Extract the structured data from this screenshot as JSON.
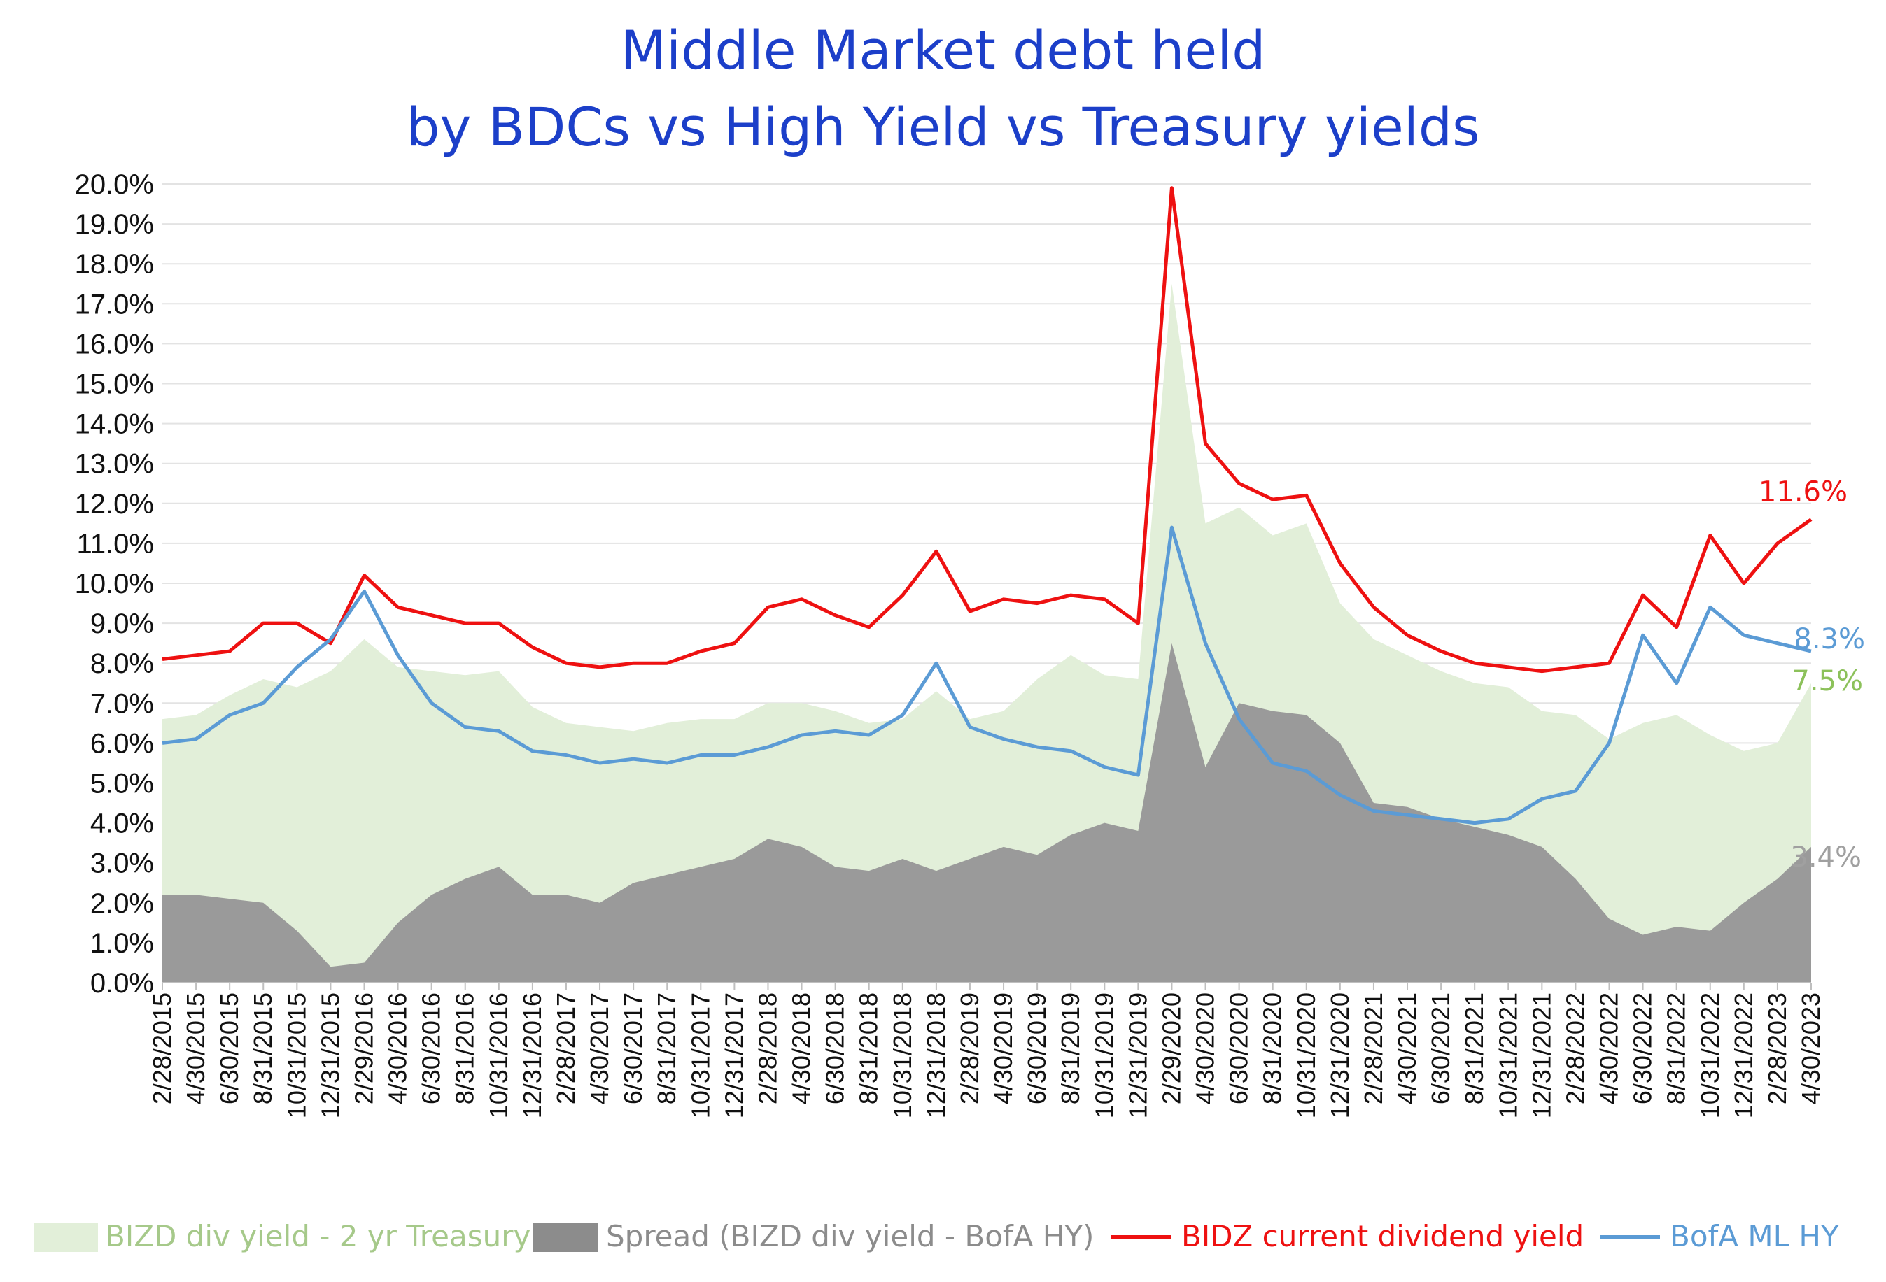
{
  "chart_data": {
    "type": "area",
    "title": [
      "Middle Market debt held",
      "by BDCs vs High Yield vs Treasury yields"
    ],
    "y_tick_labels": [
      "0.0%",
      "1.0%",
      "2.0%",
      "3.0%",
      "4.0%",
      "5.0%",
      "6.0%",
      "7.0%",
      "8.0%",
      "9.0%",
      "10.0%",
      "11.0%",
      "12.0%",
      "13.0%",
      "14.0%",
      "15.0%",
      "16.0%",
      "17.0%",
      "18.0%",
      "19.0%",
      "20.0%"
    ],
    "ylim": [
      0,
      20
    ],
    "x_tick_labels": [
      "2/28/2015",
      "4/30/2015",
      "6/30/2015",
      "8/31/2015",
      "10/31/2015",
      "12/31/2015",
      "2/29/2016",
      "4/30/2016",
      "6/30/2016",
      "8/31/2016",
      "10/31/2016",
      "12/31/2016",
      "2/28/2017",
      "4/30/2017",
      "6/30/2017",
      "8/31/2017",
      "10/31/2017",
      "12/31/2017",
      "2/28/2018",
      "4/30/2018",
      "6/30/2018",
      "8/31/2018",
      "10/31/2018",
      "12/31/2018",
      "2/28/2019",
      "4/30/2019",
      "6/30/2019",
      "8/31/2019",
      "10/31/2019",
      "12/31/2019",
      "2/29/2020",
      "4/30/2020",
      "6/30/2020",
      "8/31/2020",
      "10/31/2020",
      "12/31/2020",
      "2/28/2021",
      "4/30/2021",
      "6/30/2021",
      "8/31/2021",
      "10/31/2021",
      "12/31/2021",
      "2/28/2022",
      "4/30/2022",
      "6/30/2022",
      "8/31/2022",
      "10/31/2022",
      "12/31/2022",
      "2/28/2023",
      "4/30/2023"
    ],
    "x": [
      "2/28/2015",
      "4/30/2015",
      "6/30/2015",
      "8/31/2015",
      "10/31/2015",
      "12/31/2015",
      "2/29/2016",
      "4/30/2016",
      "6/30/2016",
      "8/31/2016",
      "10/31/2016",
      "12/31/2016",
      "2/28/2017",
      "4/30/2017",
      "6/30/2017",
      "8/31/2017",
      "10/31/2017",
      "12/31/2017",
      "2/28/2018",
      "4/30/2018",
      "6/30/2018",
      "8/31/2018",
      "10/31/2018",
      "12/31/2018",
      "2/28/2019",
      "4/30/2019",
      "6/30/2019",
      "8/31/2019",
      "10/31/2019",
      "12/31/2019",
      "2/29/2020",
      "4/30/2020",
      "6/30/2020",
      "8/31/2020",
      "10/31/2020",
      "12/31/2020",
      "2/28/2021",
      "4/30/2021",
      "6/30/2021",
      "8/31/2021",
      "10/31/2021",
      "12/31/2021",
      "2/28/2022",
      "4/30/2022",
      "6/30/2022",
      "8/31/2022",
      "10/31/2022",
      "12/31/2022",
      "2/28/2023",
      "4/30/2023"
    ],
    "series": [
      {
        "name": "BIZD div yield - 2 yr Treasury",
        "kind": "area",
        "color": "#e2efd9",
        "values": [
          6.6,
          6.7,
          7.2,
          7.6,
          7.4,
          7.8,
          8.6,
          7.9,
          7.8,
          7.7,
          7.8,
          6.9,
          6.5,
          6.4,
          6.3,
          6.5,
          6.6,
          6.6,
          7.0,
          7.0,
          6.8,
          6.5,
          6.6,
          7.3,
          6.6,
          6.8,
          7.6,
          8.2,
          7.7,
          7.6,
          17.5,
          11.5,
          11.9,
          11.2,
          11.5,
          9.5,
          8.6,
          8.2,
          7.8,
          7.5,
          7.4,
          6.8,
          6.7,
          6.1,
          6.5,
          6.7,
          6.2,
          5.8,
          6.0,
          7.5
        ]
      },
      {
        "name": "Spread (BIZD div yield - BofA HY)",
        "kind": "area",
        "color": "#9a9a9a",
        "values": [
          2.2,
          2.2,
          2.1,
          2.0,
          1.3,
          0.4,
          0.5,
          1.5,
          2.2,
          2.6,
          2.9,
          2.2,
          2.2,
          2.0,
          2.5,
          2.7,
          2.9,
          3.1,
          3.6,
          3.4,
          2.9,
          2.8,
          3.1,
          2.8,
          3.1,
          3.4,
          3.2,
          3.7,
          4.0,
          3.8,
          8.5,
          5.4,
          7.0,
          6.8,
          6.7,
          6.0,
          4.5,
          4.4,
          4.1,
          3.9,
          3.7,
          3.4,
          2.6,
          1.6,
          1.2,
          1.4,
          1.3,
          2.0,
          2.6,
          3.4
        ]
      },
      {
        "name": "BIDZ current dividend yield",
        "kind": "line",
        "color": "#ee1111",
        "values": [
          8.1,
          8.2,
          8.3,
          9.0,
          9.0,
          8.5,
          10.2,
          9.4,
          9.2,
          9.0,
          9.0,
          8.4,
          8.0,
          7.9,
          8.0,
          8.0,
          8.3,
          8.5,
          9.4,
          9.6,
          9.2,
          8.9,
          9.7,
          10.8,
          9.3,
          9.6,
          9.5,
          9.7,
          9.6,
          9.0,
          19.9,
          13.5,
          12.5,
          12.1,
          12.2,
          10.5,
          9.4,
          8.7,
          8.3,
          8.0,
          7.9,
          7.8,
          7.9,
          8.0,
          9.7,
          8.9,
          11.2,
          10.0,
          11.0,
          11.6
        ]
      },
      {
        "name": "BofA ML HY",
        "kind": "line",
        "color": "#5b9bd5",
        "values": [
          6.0,
          6.1,
          6.7,
          7.0,
          7.9,
          8.6,
          9.8,
          8.2,
          7.0,
          6.4,
          6.3,
          5.8,
          5.7,
          5.5,
          5.6,
          5.5,
          5.7,
          5.7,
          5.9,
          6.2,
          6.3,
          6.2,
          6.7,
          8.0,
          6.4,
          6.1,
          5.9,
          5.8,
          5.4,
          5.2,
          11.4,
          8.5,
          6.6,
          5.5,
          5.3,
          4.7,
          4.3,
          4.2,
          4.1,
          4.0,
          4.1,
          4.6,
          4.8,
          6.0,
          8.7,
          7.5,
          9.4,
          8.7,
          8.5,
          8.3
        ]
      }
    ],
    "end_labels": [
      {
        "text": "11.6%",
        "value": 11.6,
        "color": "#ee1111"
      },
      {
        "text": "8.3%",
        "value": 8.3,
        "color": "#5b9bd5"
      },
      {
        "text": "7.5%",
        "value": 7.5,
        "color": "#8cc15a"
      },
      {
        "text": "3.4%",
        "value": 3.4,
        "color": "#a0a0a0"
      }
    ],
    "legend": {
      "position": "bottom",
      "items": [
        {
          "label": "BIZD div yield - 2 yr Treasury",
          "swatch": "area",
          "color": "#e2efd9",
          "text_color": "#a6c98a"
        },
        {
          "label": "Spread (BIZD div yield - BofA HY)",
          "swatch": "area",
          "color": "#8c8c8c",
          "text_color": "#8c8c8c"
        },
        {
          "label": "BIDZ current dividend yield",
          "swatch": "line",
          "color": "#ee1111",
          "text_color": "#ee1111"
        },
        {
          "label": "BofA ML HY",
          "swatch": "line",
          "color": "#5b9bd5",
          "text_color": "#5b9bd5"
        }
      ]
    },
    "grid": true
  }
}
